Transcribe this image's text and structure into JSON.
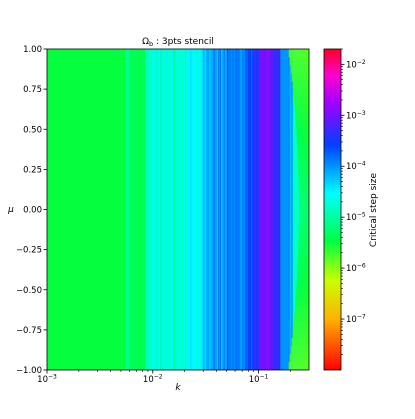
{
  "chart_data": {
    "type": "heatmap",
    "title": "Ω_b : 3pts stencil",
    "title_base": "Ω",
    "title_sub": "b",
    "title_rest": " : 3pts stencil",
    "xlabel": "k",
    "ylabel": "μ",
    "x_scale": "log",
    "xlim": [
      0.001,
      0.3
    ],
    "ylim": [
      -1.0,
      1.0
    ],
    "x_major_ticks": [
      0.001,
      0.01,
      0.1
    ],
    "x_tick_labels": [
      {
        "base": "10",
        "exp": "−3"
      },
      {
        "base": "10",
        "exp": "−2"
      },
      {
        "base": "10",
        "exp": "−1"
      }
    ],
    "y_ticks": [
      1.0,
      0.75,
      0.5,
      0.25,
      0.0,
      -0.25,
      -0.5,
      -0.75,
      -1.0
    ],
    "y_tick_labels": [
      "1.00",
      "0.75",
      "0.50",
      "0.25",
      "0.00",
      "−0.25",
      "−0.50",
      "−0.75",
      "−1.00"
    ],
    "colorbar": {
      "label": "Critical step size",
      "scale": "log",
      "range": [
        1e-08,
        0.02
      ],
      "cmap": "gist_rainbow (red = small, red-magenta = large)",
      "tick_exponents": [
        -2,
        -3,
        -4,
        -5,
        -6,
        -7
      ],
      "tick_labels": [
        {
          "base": "10",
          "exp": "−2"
        },
        {
          "base": "10",
          "exp": "−3"
        },
        {
          "base": "10",
          "exp": "−4"
        },
        {
          "base": "10",
          "exp": "−5"
        },
        {
          "base": "10",
          "exp": "−6"
        },
        {
          "base": "10",
          "exp": "−7"
        }
      ]
    },
    "column_bands": [
      {
        "k_from": 0.001,
        "k_to": 0.0055,
        "log10_value": -5.5
      },
      {
        "k_from": 0.0055,
        "k_to": 0.006,
        "log10_value": -5.1
      },
      {
        "k_from": 0.006,
        "k_to": 0.0085,
        "log10_value": -5.4
      },
      {
        "k_from": 0.0085,
        "k_to": 0.0095,
        "log10_value": -4.9
      },
      {
        "k_from": 0.0095,
        "k_to": 0.02,
        "log10_value": -4.7
      },
      {
        "k_from": 0.02,
        "k_to": 0.03,
        "log10_value": -4.5
      },
      {
        "k_from": 0.03,
        "k_to": 0.045,
        "log10_value": -4.1
      },
      {
        "k_from": 0.045,
        "k_to": 0.075,
        "log10_value": -3.9
      },
      {
        "k_from": 0.075,
        "k_to": 0.1,
        "log10_value": -3.6
      },
      {
        "k_from": 0.1,
        "k_to": 0.13,
        "log10_value": -3.0
      },
      {
        "k_from": 0.13,
        "k_to": 0.16,
        "log10_value": -3.3
      },
      {
        "k_from": 0.16,
        "k_to": 0.21,
        "log10_value": -4.0
      },
      {
        "k_from": 0.21,
        "k_to": 0.25,
        "log10_value": -4.8
      },
      {
        "k_from": 0.25,
        "k_to": 0.3,
        "log10_value": -5.9
      }
    ],
    "colors": {
      "spine": "#000000",
      "background": "#ffffff"
    }
  }
}
